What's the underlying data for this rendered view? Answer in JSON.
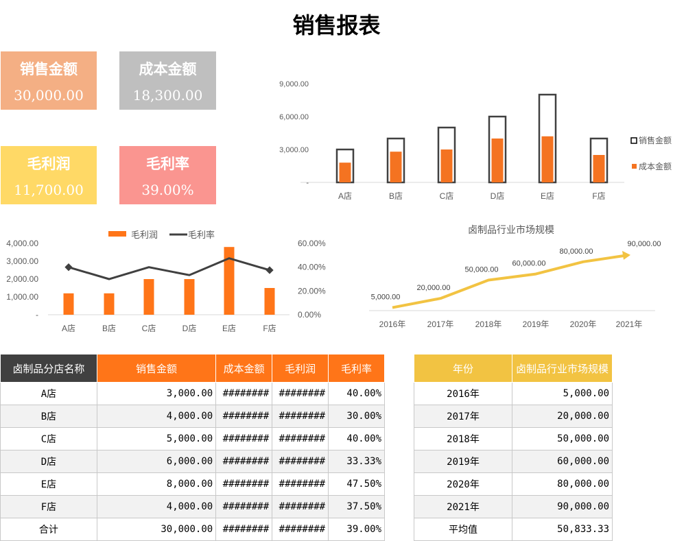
{
  "title": "销售报表",
  "kpis": [
    {
      "label": "销售金额",
      "value": "30,000.00",
      "color": "#F4AF84"
    },
    {
      "label": "成本金额",
      "value": "18,300.00",
      "color": "#BFBFBF"
    },
    {
      "label": "毛利润",
      "value": "11,700.00",
      "color": "#FFD966"
    },
    {
      "label": "毛利率",
      "value": "39.00%",
      "color": "#FA9590"
    }
  ],
  "chart_data": [
    {
      "type": "bar",
      "categories": [
        "A店",
        "B店",
        "C店",
        "D店",
        "E店",
        "F店"
      ],
      "series": [
        {
          "name": "销售金额",
          "values": [
            3000,
            4000,
            5000,
            6000,
            8000,
            4000
          ],
          "color": "#404040",
          "style": "outline"
        },
        {
          "name": "成本金额",
          "values": [
            1800,
            2800,
            3000,
            4000,
            4200,
            2500
          ],
          "color": "#F47321"
        }
      ],
      "yticks": [
        "-",
        "3,000.00",
        "6,000.00",
        "9,000.00"
      ],
      "ylim": [
        0,
        9000
      ],
      "legend": "right"
    },
    {
      "type": "bar+line",
      "categories": [
        "A店",
        "B店",
        "C店",
        "D店",
        "E店",
        "F店"
      ],
      "series": [
        {
          "name": "毛利润",
          "values": [
            1200,
            1200,
            2000,
            2000,
            3800,
            1500
          ],
          "color": "#FF7518",
          "axis": "left"
        },
        {
          "name": "毛利率",
          "values": [
            40,
            30,
            40,
            33.33,
            47.5,
            37.5
          ],
          "color": "#404040",
          "axis": "right"
        }
      ],
      "yticks": [
        "-",
        "1,000.00",
        "2,000.00",
        "3,000.00",
        "4,000.00"
      ],
      "ylim": [
        0,
        4000
      ],
      "y2ticks": [
        "0.00%",
        "20.00%",
        "40.00%",
        "60.00%"
      ],
      "y2lim": [
        0,
        60
      ],
      "legend": "top"
    },
    {
      "type": "line",
      "title": "卤制品行业市场规模",
      "categories": [
        "2016年",
        "2017年",
        "2018年",
        "2019年",
        "2020年",
        "2021年"
      ],
      "values": [
        5000,
        20000,
        50000,
        60000,
        80000,
        90000
      ],
      "labels": [
        "5,000.00",
        "20,000.00",
        "50,000.00",
        "60,000.00",
        "80,000.00",
        "90,000.00"
      ],
      "color": "#F2C342",
      "ylim": [
        0,
        100000
      ]
    }
  ],
  "sales_table": {
    "headers": [
      "卤制品分店名称",
      "销售金额",
      "成本金额",
      "毛利润",
      "毛利率"
    ],
    "rows": [
      [
        "A店",
        "3,000.00",
        "########",
        "########",
        "40.00%"
      ],
      [
        "B店",
        "4,000.00",
        "########",
        "########",
        "30.00%"
      ],
      [
        "C店",
        "5,000.00",
        "########",
        "########",
        "40.00%"
      ],
      [
        "D店",
        "6,000.00",
        "########",
        "########",
        "33.33%"
      ],
      [
        "E店",
        "8,000.00",
        "########",
        "########",
        "47.50%"
      ],
      [
        "F店",
        "4,000.00",
        "########",
        "########",
        "37.50%"
      ],
      [
        "合计",
        "30,000.00",
        "########",
        "########",
        "39.00%"
      ]
    ]
  },
  "market_table": {
    "headers": [
      "年份",
      "卤制品行业市场规模"
    ],
    "rows": [
      [
        "2016年",
        "5,000.00"
      ],
      [
        "2017年",
        "20,000.00"
      ],
      [
        "2018年",
        "50,000.00"
      ],
      [
        "2019年",
        "60,000.00"
      ],
      [
        "2020年",
        "80,000.00"
      ],
      [
        "2021年",
        "90,000.00"
      ],
      [
        "平均值",
        "50,833.33"
      ]
    ]
  }
}
